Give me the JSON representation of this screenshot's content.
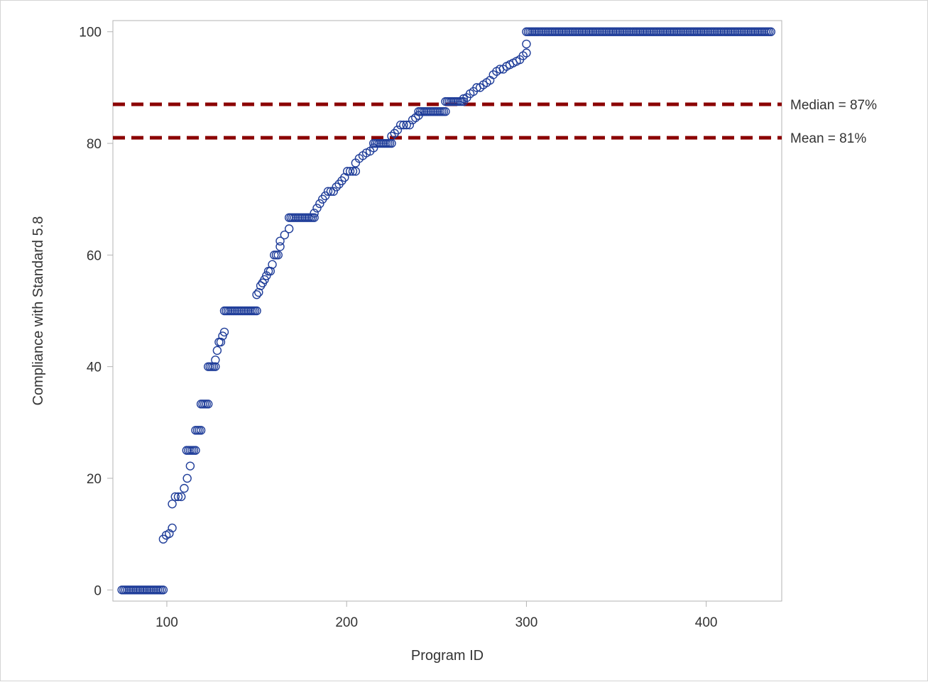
{
  "chart_data": {
    "type": "scatter",
    "xlabel": "Program ID",
    "ylabel": "Compliance with Standard 5.8",
    "xlim": [
      70,
      442
    ],
    "ylim": [
      -2,
      102
    ],
    "xticks": [
      100,
      200,
      300,
      400
    ],
    "yticks": [
      0,
      20,
      40,
      60,
      80,
      100
    ],
    "grid": false,
    "colors": {
      "marker": "#1f3d99",
      "reference": "#8b0000",
      "axis": "#b3b3b3",
      "text": "#333333"
    },
    "marker": "open-circle",
    "reference_lines": [
      {
        "label": "Median = 87%",
        "y": 87,
        "style": "dashed"
      },
      {
        "label": "Mean = 81%",
        "y": 81,
        "style": "dashed"
      }
    ],
    "segments": [
      {
        "x_start": 75,
        "x_end": 98,
        "y": 0
      },
      {
        "x_start": 98,
        "x_end": 103,
        "y_values": [
          9.1,
          9.8,
          10.1,
          11.1
        ]
      },
      {
        "x_start": 103,
        "x_end": 113,
        "y_values": [
          15.4,
          16.7,
          16.7,
          16.7,
          18.2,
          20,
          22.2
        ]
      },
      {
        "x_start": 111,
        "x_end": 116,
        "y": 25
      },
      {
        "x_start": 116,
        "x_end": 119,
        "y": 28.6
      },
      {
        "x_start": 119,
        "x_end": 123,
        "y": 33.3
      },
      {
        "x_start": 123,
        "x_end": 127,
        "y": 40
      },
      {
        "x_start": 127,
        "x_end": 132,
        "y_values": [
          41.2,
          42.9,
          44.4,
          44.4,
          45.5,
          46.2
        ]
      },
      {
        "x_start": 132,
        "x_end": 150,
        "y": 50
      },
      {
        "x_start": 150,
        "x_end": 163,
        "y_values": [
          52.9,
          53.3,
          54.5,
          55,
          55.6,
          56.3,
          57.1,
          57.1,
          58.3,
          60,
          60,
          60,
          61.5
        ]
      },
      {
        "x_start": 163,
        "x_end": 168,
        "y_values": [
          62.5,
          63.6,
          64.7
        ]
      },
      {
        "x_start": 168,
        "x_end": 182,
        "y": 66.7
      },
      {
        "x_start": 182,
        "x_end": 205,
        "y_values": [
          67.5,
          68.4,
          69.2,
          70,
          70.6,
          71.4,
          71.4,
          71.4,
          72.2,
          72.7,
          73.3,
          73.9,
          75,
          75,
          75,
          75
        ]
      },
      {
        "x_start": 205,
        "x_end": 215,
        "y_values": [
          76.5,
          77.3,
          77.8,
          78.3,
          78.6,
          79.2
        ]
      },
      {
        "x_start": 215,
        "x_end": 225,
        "y": 80
      },
      {
        "x_start": 225,
        "x_end": 240,
        "y_values": [
          81.3,
          81.8,
          82.4,
          83.3,
          83.3,
          83.3,
          83.3,
          84.2,
          84.6,
          85
        ]
      },
      {
        "x_start": 240,
        "x_end": 255,
        "y": 85.7
      },
      {
        "x_start": 255,
        "x_end": 265,
        "y": 87.5
      },
      {
        "x_start": 265,
        "x_end": 300,
        "y_values": [
          88,
          88.2,
          88.9,
          89.3,
          90,
          90,
          90.5,
          90.9,
          91.3,
          92.3,
          92.9,
          93.3,
          93.3,
          93.8,
          94.1,
          94.4,
          94.7,
          95,
          95.7,
          96.2
        ]
      },
      {
        "x_start": 300,
        "x_end": 300,
        "y_values": [
          97.8
        ]
      },
      {
        "x_start": 300,
        "x_end": 436,
        "y": 100
      }
    ]
  }
}
